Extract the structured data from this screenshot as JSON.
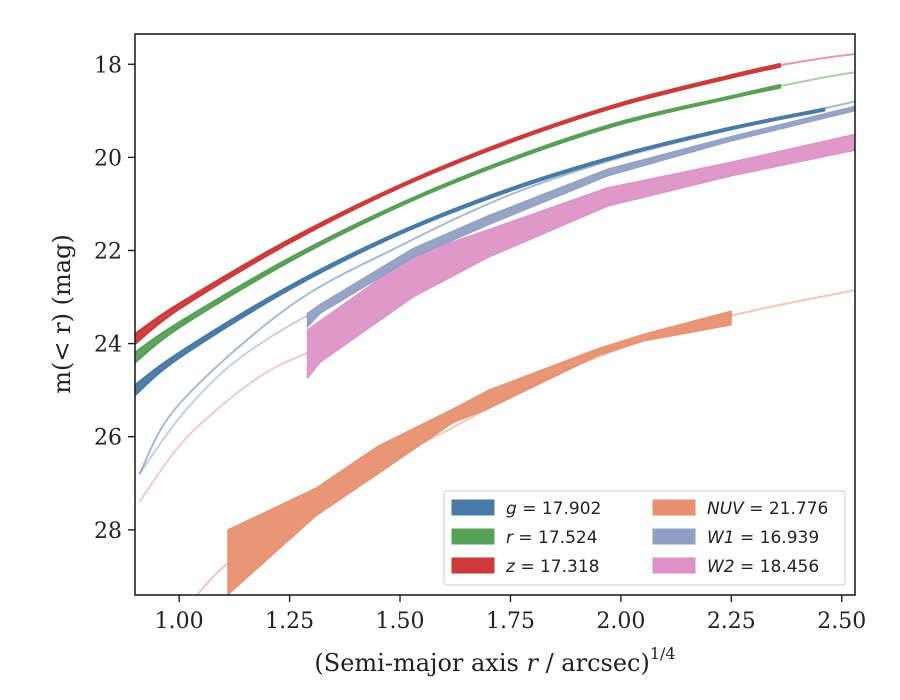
{
  "chart_data": {
    "type": "line",
    "xlabel": "(Semi-major axis r / arcsec)",
    "xlabel_var": "r",
    "xlabel_exp": "1/4",
    "ylabel": "m(< r) (mag)",
    "xlim": [
      0.9,
      2.53
    ],
    "ylim": [
      29.4,
      17.35
    ],
    "y_inverted": true,
    "xticks": [
      "1.00",
      "1.25",
      "1.50",
      "1.75",
      "2.00",
      "2.25",
      "2.50"
    ],
    "xtick_values": [
      1.0,
      1.25,
      1.5,
      1.75,
      2.0,
      2.25,
      2.5
    ],
    "yticks": [
      "18",
      "20",
      "22",
      "24",
      "26",
      "28"
    ],
    "ytick_values": [
      18,
      20,
      22,
      24,
      26,
      28
    ],
    "grid": false,
    "legend_position": "lower-right",
    "legend": [
      {
        "band": "g",
        "value": "17.902",
        "color": "#4a7aa8"
      },
      {
        "band": "r",
        "value": "17.524",
        "color": "#58a058"
      },
      {
        "band": "z",
        "value": "17.318",
        "color": "#cc3a3a"
      },
      {
        "band": "NUV",
        "value": "21.776",
        "color": "#e89070"
      },
      {
        "band": "W1",
        "value": "16.939",
        "color": "#8f9fc4"
      },
      {
        "band": "W2",
        "value": "18.456",
        "color": "#dc92c6"
      }
    ],
    "series": [
      {
        "name": "g",
        "color": "#4a7aa8",
        "band_x": [
          0.9,
          1.0,
          1.25,
          1.5,
          1.75,
          2.0,
          2.25,
          2.46
        ],
        "band_upper": [
          24.9,
          24.2,
          22.77,
          21.6,
          20.67,
          19.94,
          19.36,
          18.96
        ],
        "band_lower": [
          25.1,
          24.3,
          22.83,
          21.64,
          20.71,
          19.97,
          19.39,
          18.99
        ],
        "extrap_x": [
          0.91,
          1.0,
          1.25,
          1.5,
          1.75,
          2.0,
          2.25,
          2.53
        ],
        "extrap_y": [
          26.8,
          25.3,
          23.2,
          21.9,
          20.8,
          20.0,
          19.4,
          18.8
        ]
      },
      {
        "name": "r",
        "color": "#58a058",
        "band_x": [
          0.9,
          1.0,
          1.25,
          1.5,
          1.75,
          2.0,
          2.25,
          2.36
        ],
        "band_upper": [
          24.2,
          23.55,
          22.17,
          21.0,
          20.03,
          19.24,
          18.69,
          18.45
        ],
        "band_lower": [
          24.4,
          23.65,
          22.23,
          21.04,
          20.07,
          19.28,
          18.72,
          18.5
        ],
        "extrap_x": [
          2.36,
          2.45,
          2.53
        ],
        "extrap_y": [
          18.47,
          18.3,
          18.17
        ]
      },
      {
        "name": "z",
        "color": "#cc3a3a",
        "band_x": [
          0.9,
          1.0,
          1.25,
          1.5,
          1.75,
          2.0,
          2.25,
          2.36
        ],
        "band_upper": [
          23.8,
          23.15,
          21.77,
          20.6,
          19.63,
          18.84,
          18.24,
          18.0
        ],
        "band_lower": [
          24.0,
          23.25,
          21.83,
          20.64,
          19.67,
          18.88,
          18.28,
          18.05
        ],
        "extrap_x": [
          2.36,
          2.45,
          2.53
        ],
        "extrap_y": [
          18.02,
          17.88,
          17.78
        ]
      },
      {
        "name": "NUV",
        "color": "#e89070",
        "band_x": [
          1.11,
          1.31,
          1.45,
          1.62,
          1.7,
          1.95,
          2.05,
          2.25
        ],
        "band_upper": [
          28.0,
          27.1,
          26.2,
          25.4,
          25.0,
          24.1,
          23.8,
          23.3
        ],
        "band_lower": [
          29.4,
          27.7,
          26.8,
          25.7,
          25.4,
          24.25,
          23.95,
          23.6
        ],
        "extrap_x": [
          1.04,
          1.1,
          1.2,
          1.4,
          1.6,
          1.8,
          2.0,
          2.25,
          2.53
        ],
        "extrap_y": [
          29.4,
          28.8,
          28.1,
          26.9,
          25.9,
          24.9,
          24.1,
          23.4,
          22.85
        ]
      },
      {
        "name": "W1",
        "color": "#8f9fc4",
        "band_x": [
          1.29,
          1.32,
          1.53,
          1.7,
          1.97,
          2.25,
          2.53
        ],
        "band_upper": [
          23.35,
          23.15,
          21.95,
          21.25,
          20.25,
          19.55,
          18.9
        ],
        "band_lower": [
          23.65,
          23.35,
          22.15,
          21.45,
          20.4,
          19.65,
          19.0
        ],
        "extrap_x": [
          0.91,
          1.0,
          1.1,
          1.2,
          1.29
        ],
        "extrap_y": [
          26.8,
          25.6,
          24.6,
          23.9,
          23.4
        ]
      },
      {
        "name": "W2",
        "color": "#dc92c6",
        "band_x": [
          1.29,
          1.32,
          1.53,
          1.7,
          1.97,
          2.25,
          2.53
        ],
        "band_upper": [
          23.7,
          23.5,
          22.1,
          21.55,
          20.65,
          20.1,
          19.5
        ],
        "band_lower": [
          24.75,
          24.4,
          23.0,
          22.15,
          21.05,
          20.4,
          19.85
        ],
        "extrap_x": [
          0.91,
          1.0,
          1.1,
          1.2,
          1.29
        ],
        "extrap_y": [
          27.4,
          26.2,
          25.3,
          24.6,
          24.2
        ]
      }
    ]
  }
}
